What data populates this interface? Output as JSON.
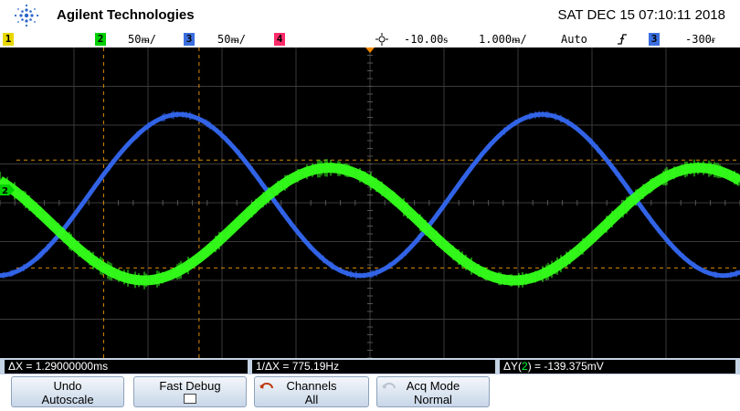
{
  "header": {
    "brand": "Agilent Technologies",
    "datetime": "SAT DEC 15 07:10:11 2018"
  },
  "channel_bar": {
    "ch1_tag": "1",
    "ch2_tag": "2",
    "ch2_scale": "50ᵯ/",
    "ch3_tag": "3",
    "ch3_scale": "50ᵯ/",
    "ch4_tag": "4",
    "time_delay": "-10.00ᵴ",
    "time_scale": "1.000ᵯ/",
    "trigger_mode": "Auto",
    "trigger_source_tag": "3",
    "trigger_level": "-300ᵲ",
    "colors": {
      "ch1": "#e8d800",
      "ch2": "#00d000",
      "ch3": "#3b6fe0",
      "ch4": "#ff2a6a"
    }
  },
  "screen": {
    "ground_marker": "2"
  },
  "chart_data": {
    "type": "line",
    "series": [
      {
        "color": "#3366ee",
        "amplitude": 0.83,
        "offset_div": 0.2,
        "period_div": 4.9,
        "phase_div": 1.2
      },
      {
        "color": "#33ff1a",
        "amplitude": 0.58,
        "offset_div": -0.55,
        "period_div": 5.0,
        "phase_div": 3.2
      }
    ],
    "grid": {
      "x_divisions": 10,
      "y_divisions": 8,
      "on": true
    },
    "cursors": {
      "x1_div": 1.4,
      "x2_div": 2.69,
      "y1_div": 1.1,
      "y2_div": -1.68,
      "color": "#d98a00"
    }
  },
  "measurements": {
    "delta_x": "ΔX = 1.29000000ms",
    "inv_delta_x": "1/ΔX = 775.19Hz",
    "delta_y_prefix": "ΔY(",
    "delta_y_ch": "2",
    "delta_y_suffix": ") = -139.375mV"
  },
  "softkeys": {
    "undo_l1": "Undo",
    "undo_l2": "Autoscale",
    "fast_debug": "Fast Debug",
    "channels_l1": "Channels",
    "channels_l2": "All",
    "acq_l1": "Acq Mode",
    "acq_l2": "Normal"
  }
}
